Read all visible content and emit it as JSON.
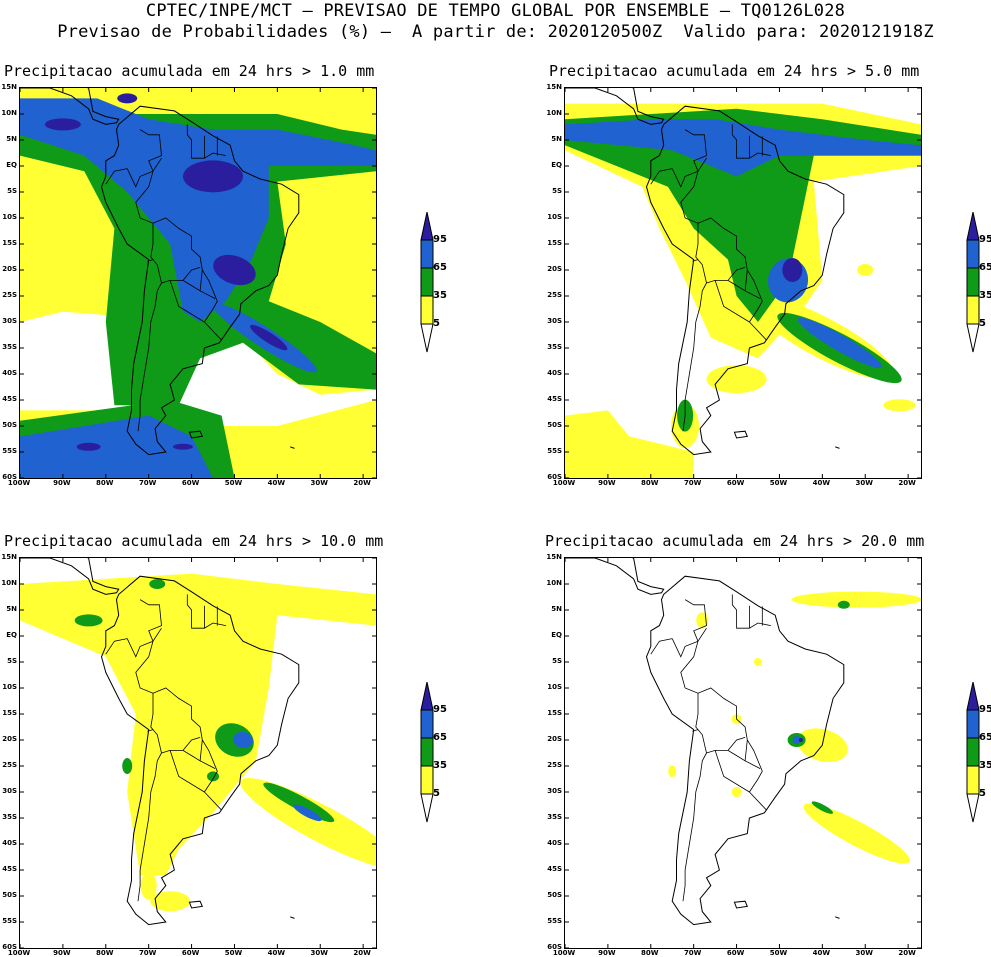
{
  "header": {
    "line1": "CPTEC/INPE/MCT – PREVISAO DE TEMPO GLOBAL POR ENSEMBLE – TQ0126L028",
    "line2": "Previsao de Probabilidades (%) –  A partir de: 2020120500Z  Valido para: 2020121918Z"
  },
  "axes": {
    "lat_labels": [
      "15N",
      "10N",
      "5N",
      "EQ",
      "5S",
      "10S",
      "15S",
      "20S",
      "25S",
      "30S",
      "35S",
      "40S",
      "45S",
      "50S",
      "55S",
      "60S"
    ],
    "lon_labels": [
      "100W",
      "90W",
      "80W",
      "70W",
      "60W",
      "50W",
      "40W",
      "30W",
      "20W"
    ]
  },
  "legend": {
    "labels": [
      "95",
      "65",
      "35",
      "5"
    ],
    "colors": {
      "c95": "#2a1e9e",
      "c65": "#1f62d0",
      "c35": "#0f9b17",
      "c5": "#ffff33",
      "c0": "#ffffff"
    }
  },
  "panels": [
    {
      "title": "Precipitacao acumulada em 24 hrs > 1.0 mm"
    },
    {
      "title": "Precipitacao acumulada em 24 hrs > 5.0 mm"
    },
    {
      "title": "Precipitacao acumulada em 24 hrs > 10.0 mm"
    },
    {
      "title": "Precipitacao acumulada em 24 hrs > 20.0 mm"
    }
  ]
}
